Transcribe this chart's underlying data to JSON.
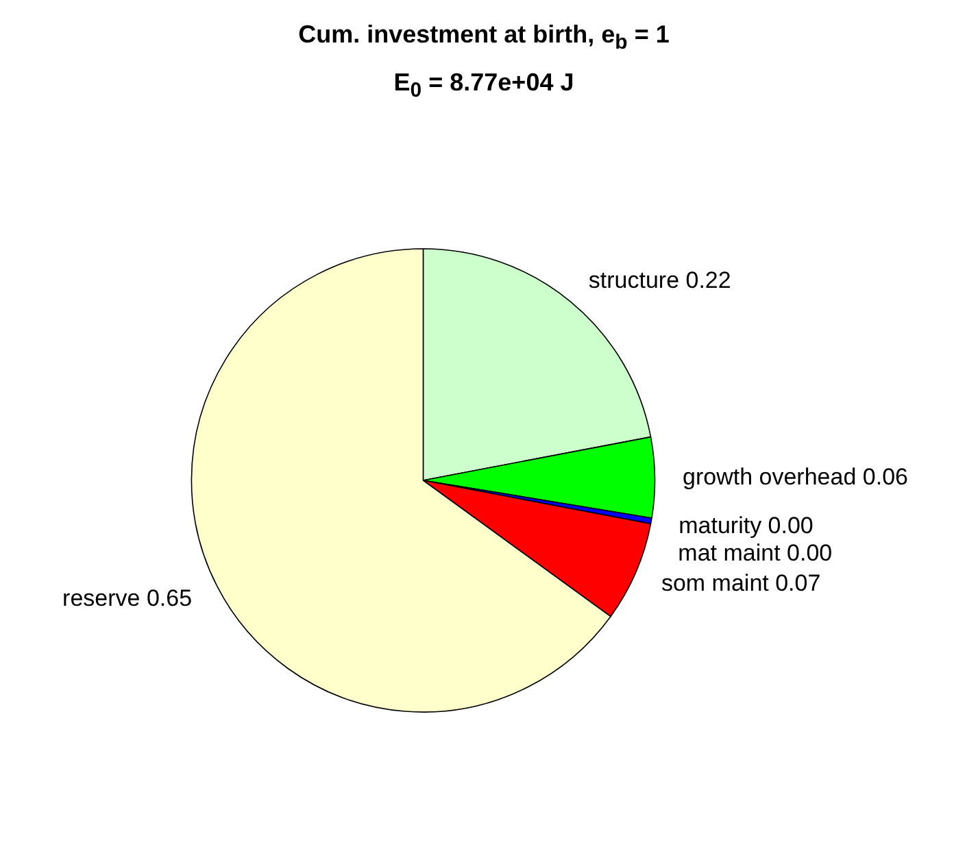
{
  "chart_data": {
    "type": "pie",
    "title": "Cum. investment at birth, e$_{b}$ = 1",
    "subtitle": "E$_{0}$ = 8.77e+04 J",
    "categories": [
      "structure",
      "growth overhead",
      "maturity",
      "mat maint",
      "som maint",
      "reserve"
    ],
    "values": [
      0.22,
      0.056,
      0.004,
      null,
      0.07,
      0.65
    ],
    "colors": [
      "#ccffcc",
      "#00ff00",
      "#0000ff",
      "#ffffff",
      "#ff0000",
      "#ffffcc"
    ],
    "value_labels": [
      "0.22",
      "0.06",
      "0.00",
      "0.00",
      "0.07",
      "0.65"
    ]
  }
}
